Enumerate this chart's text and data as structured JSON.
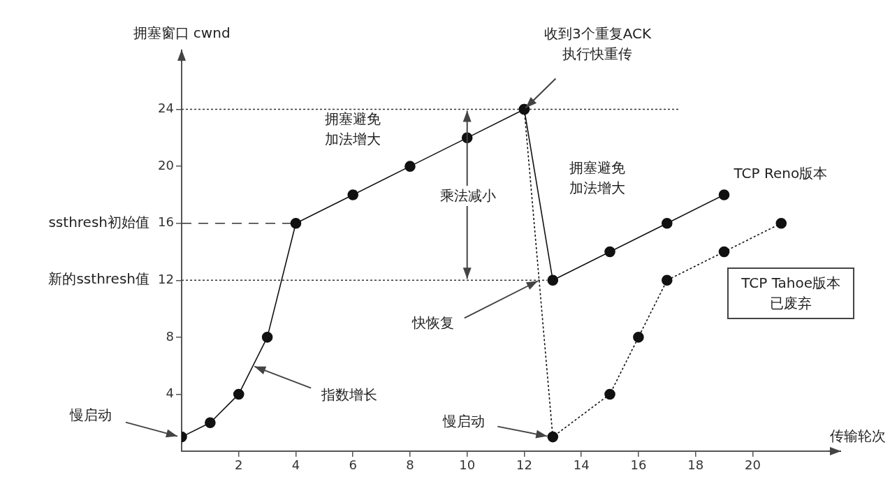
{
  "chart_data": {
    "type": "line",
    "xlabel": "传输轮次",
    "ylabel": "拥塞窗口 cwnd",
    "xlim": [
      0,
      23
    ],
    "ylim": [
      0,
      28
    ],
    "xticks": [
      2,
      4,
      6,
      8,
      10,
      12,
      14,
      16,
      18,
      20
    ],
    "yticks": [
      4,
      8,
      12,
      16,
      20,
      24
    ],
    "grid": false,
    "legend": false,
    "marker": "circle",
    "series": [
      {
        "name": "TCP Reno版本",
        "color": "#111111",
        "line_style": "solid",
        "x": [
          0,
          1,
          2,
          3,
          4,
          6,
          8,
          10,
          12,
          13,
          15,
          17,
          19
        ],
        "values": [
          1,
          2,
          4,
          8,
          16,
          18,
          20,
          22,
          24,
          12,
          14,
          16,
          18
        ]
      },
      {
        "name": "TCP Tahoe版本",
        "color": "#111111",
        "line_style": "dotted",
        "x": [
          12,
          13,
          15,
          16,
          17,
          19,
          21
        ],
        "values": [
          24,
          1,
          4,
          8,
          12,
          14,
          16
        ]
      }
    ],
    "ref_lines": [
      {
        "axis": "y",
        "value": 24,
        "label": null,
        "line_style": "dotted"
      },
      {
        "axis": "y",
        "value": 12,
        "label": "新的ssthresh值",
        "line_style": "dotted"
      },
      {
        "axis": "y",
        "value": 16,
        "label": "ssthresh初始值",
        "line_style": "dashed"
      }
    ],
    "annotations": [
      {
        "text": "收到3个重复ACK\n执行快重传",
        "x": 12,
        "y": 24
      },
      "拥塞避免加法增大",
      "乘法减小",
      "拥塞避免加法增大",
      {
        "text": "快恢复",
        "x": 12.5,
        "y": 12
      },
      {
        "text": "指数增长",
        "x": 2.5,
        "y": 6
      },
      {
        "text": "慢启动",
        "x": 0,
        "y": 1
      },
      {
        "text": "慢启动",
        "x": 13,
        "y": 1
      },
      "已废弃"
    ]
  }
}
